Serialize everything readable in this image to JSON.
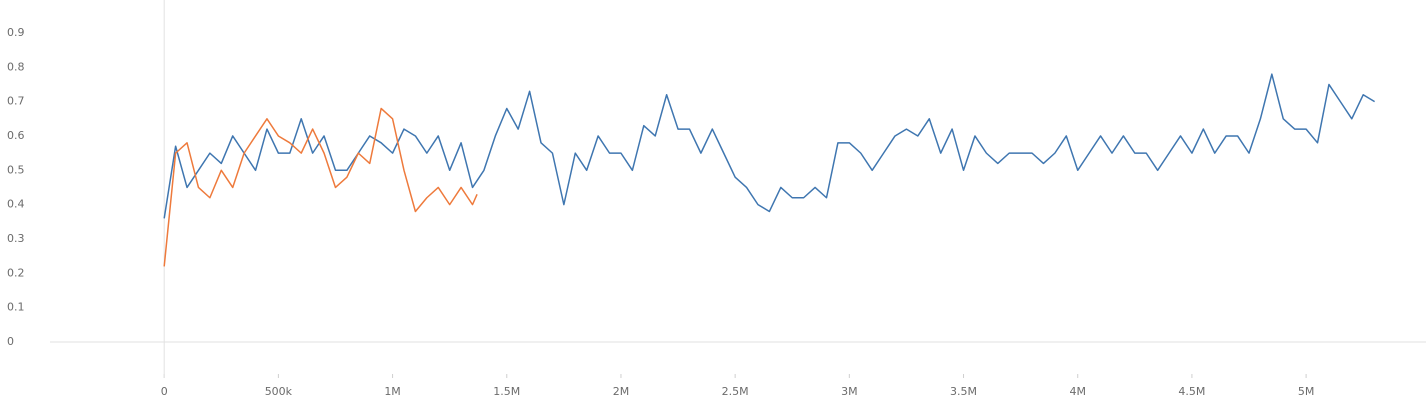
{
  "chart_data": {
    "type": "line",
    "series": [
      {
        "color": "#3f76b0",
        "x": [
          0,
          50000,
          100000,
          150000,
          200000,
          250000,
          300000,
          350000,
          400000,
          450000,
          500000,
          550000,
          600000,
          650000,
          700000,
          750000,
          800000,
          850000,
          900000,
          950000,
          1000000,
          1050000,
          1100000,
          1150000,
          1200000,
          1250000,
          1300000,
          1350000,
          1400000,
          1450000,
          1500000,
          1550000,
          1600000,
          1650000,
          1700000,
          1750000,
          1800000,
          1850000,
          1900000,
          1950000,
          2000000,
          2050000,
          2100000,
          2150000,
          2200000,
          2250000,
          2300000,
          2350000,
          2400000,
          2450000,
          2500000,
          2550000,
          2600000,
          2650000,
          2700000,
          2750000,
          2800000,
          2850000,
          2900000,
          2950000,
          3000000,
          3050000,
          3100000,
          3150000,
          3200000,
          3250000,
          3300000,
          3350000,
          3400000,
          3450000,
          3500000,
          3550000,
          3600000,
          3650000,
          3700000,
          3750000,
          3800000,
          3850000,
          3900000,
          3950000,
          4000000,
          4050000,
          4100000,
          4150000,
          4200000,
          4250000,
          4300000,
          4350000,
          4400000,
          4450000,
          4500000,
          4550000,
          4600000,
          4650000,
          4700000,
          4750000,
          4800000,
          4850000,
          4900000,
          4950000,
          5000000,
          5050000,
          5100000,
          5150000,
          5200000,
          5250000,
          5300000
        ],
        "values": [
          0.36,
          0.57,
          0.45,
          0.5,
          0.55,
          0.52,
          0.6,
          0.55,
          0.5,
          0.62,
          0.55,
          0.55,
          0.65,
          0.55,
          0.6,
          0.5,
          0.5,
          0.55,
          0.6,
          0.58,
          0.55,
          0.62,
          0.6,
          0.55,
          0.6,
          0.5,
          0.58,
          0.45,
          0.5,
          0.6,
          0.68,
          0.62,
          0.73,
          0.58,
          0.55,
          0.4,
          0.55,
          0.5,
          0.6,
          0.55,
          0.55,
          0.5,
          0.63,
          0.6,
          0.72,
          0.62,
          0.62,
          0.55,
          0.62,
          0.55,
          0.48,
          0.45,
          0.4,
          0.38,
          0.45,
          0.42,
          0.42,
          0.45,
          0.42,
          0.58,
          0.58,
          0.55,
          0.5,
          0.55,
          0.6,
          0.62,
          0.6,
          0.65,
          0.55,
          0.62,
          0.5,
          0.6,
          0.55,
          0.52,
          0.55,
          0.55,
          0.55,
          0.52,
          0.55,
          0.6,
          0.5,
          0.55,
          0.6,
          0.55,
          0.6,
          0.55,
          0.55,
          0.5,
          0.55,
          0.6,
          0.55,
          0.62,
          0.55,
          0.6,
          0.6,
          0.55,
          0.65,
          0.78,
          0.65,
          0.62,
          0.62,
          0.58,
          0.75,
          0.7,
          0.65,
          0.72,
          0.7
        ]
      },
      {
        "color": "#ee7a3c",
        "x": [
          0,
          50000,
          100000,
          150000,
          200000,
          250000,
          300000,
          350000,
          400000,
          450000,
          500000,
          550000,
          600000,
          650000,
          700000,
          750000,
          800000,
          850000,
          900000,
          950000,
          1000000,
          1050000,
          1100000,
          1150000,
          1200000,
          1250000,
          1300000,
          1350000,
          1370000
        ],
        "values": [
          0.22,
          0.55,
          0.58,
          0.45,
          0.42,
          0.5,
          0.45,
          0.55,
          0.6,
          0.65,
          0.6,
          0.58,
          0.55,
          0.62,
          0.55,
          0.45,
          0.48,
          0.55,
          0.52,
          0.68,
          0.65,
          0.5,
          0.38,
          0.42,
          0.45,
          0.4,
          0.45,
          0.4,
          0.43
        ]
      }
    ],
    "xlim": [
      -500000,
      5525000
    ],
    "xticks": [
      0,
      {
        "value": 500000,
        "label": "500k"
      },
      {
        "value": 1000000,
        "label": "1M"
      },
      {
        "value": 1500000,
        "label": "1.5M"
      },
      {
        "value": 2000000,
        "label": "2M"
      },
      {
        "value": 2500000,
        "label": "2.5M"
      },
      {
        "value": 3000000,
        "label": "3M"
      },
      {
        "value": 3500000,
        "label": "3.5M"
      },
      {
        "value": 4000000,
        "label": "4M"
      },
      {
        "value": 4500000,
        "label": "4.5M"
      },
      {
        "value": 5000000,
        "label": "5M"
      }
    ],
    "ylim": [
      -0.105,
      0.996
    ],
    "yticks": [
      0,
      0.1,
      0.2,
      0.3,
      0.4,
      0.5,
      0.6,
      0.7,
      0.8,
      0.9
    ]
  }
}
